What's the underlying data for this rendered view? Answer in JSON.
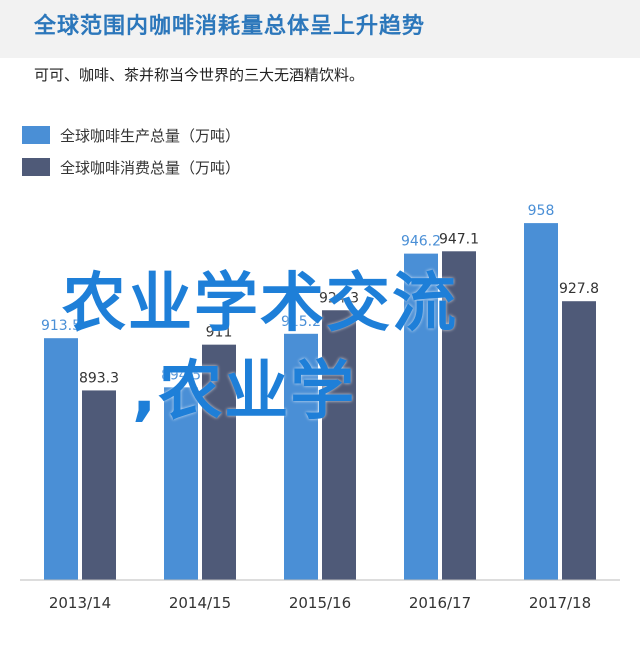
{
  "title": "全球范围内咖啡消耗量总体呈上升趋势",
  "subtitle": "可可、咖啡、茶并称当今世界的三大无酒精饮料。",
  "overlay": {
    "line1": "农业学术交流",
    "line2": ",农业学"
  },
  "colors": {
    "production": "#4a8fd6",
    "consumption": "#4f5a78",
    "title": "#2c77bb",
    "label_production": "#4a8fd6",
    "label_consumption": "#333333"
  },
  "chart_data": {
    "type": "bar",
    "categories": [
      "2013/14",
      "2014/15",
      "2015/16",
      "2016/17",
      "2017/18"
    ],
    "series": [
      {
        "name": "全球咖啡生产总量（万吨）",
        "values": [
          913.5,
          894.5,
          915.2,
          946.2,
          958
        ]
      },
      {
        "name": "全球咖啡消费总量（万吨）",
        "values": [
          893.3,
          911.0,
          924.3,
          947.1,
          927.8
        ]
      }
    ],
    "ylim": [
      820,
      965
    ],
    "grid": false,
    "legend": "top-left"
  }
}
